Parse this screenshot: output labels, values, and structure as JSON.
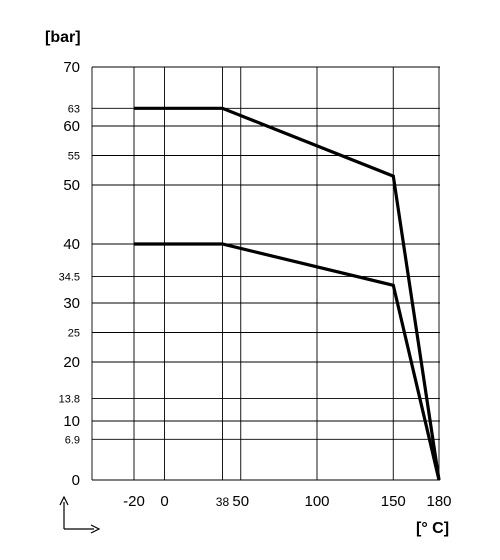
{
  "chart_data": {
    "type": "line",
    "ylabel": "[bar]",
    "xlabel": "[° C]",
    "xlim": [
      -20,
      180
    ],
    "ylim": [
      0,
      70
    ],
    "grid": true,
    "x_ticks": [
      {
        "value": -20,
        "label": "-20",
        "minor": false
      },
      {
        "value": 0,
        "label": "0",
        "minor": false
      },
      {
        "value": 38,
        "label": "38",
        "minor": true
      },
      {
        "value": 50,
        "label": "50",
        "minor": false
      },
      {
        "value": 100,
        "label": "100",
        "minor": false
      },
      {
        "value": 150,
        "label": "150",
        "minor": false
      },
      {
        "value": 180,
        "label": "180",
        "minor": false
      }
    ],
    "y_ticks": [
      {
        "value": 0,
        "label": "0",
        "minor": false
      },
      {
        "value": 6.9,
        "label": "6.9",
        "minor": true
      },
      {
        "value": 10,
        "label": "10",
        "minor": false
      },
      {
        "value": 13.8,
        "label": "13.8",
        "minor": true
      },
      {
        "value": 20,
        "label": "20",
        "minor": false
      },
      {
        "value": 25,
        "label": "25",
        "minor": true
      },
      {
        "value": 30,
        "label": "30",
        "minor": false
      },
      {
        "value": 34.5,
        "label": "34.5",
        "minor": true
      },
      {
        "value": 40,
        "label": "40",
        "minor": false
      },
      {
        "value": 50,
        "label": "50",
        "minor": false
      },
      {
        "value": 55,
        "label": "55",
        "minor": true
      },
      {
        "value": 60,
        "label": "60",
        "minor": false
      },
      {
        "value": 63,
        "label": "63",
        "minor": true
      },
      {
        "value": 70,
        "label": "70",
        "minor": false
      }
    ],
    "series": [
      {
        "x": [
          -20,
          38,
          150,
          180
        ],
        "y": [
          63,
          63,
          51.5,
          0
        ]
      },
      {
        "x": [
          -20,
          38,
          150,
          180
        ],
        "y": [
          40,
          40,
          33,
          0
        ]
      }
    ]
  }
}
